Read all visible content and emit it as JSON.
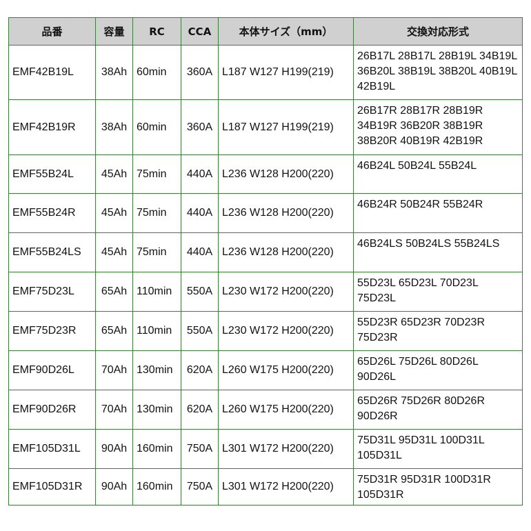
{
  "headers": [
    "品番",
    "容量",
    "RC",
    "CCA",
    "本体サイズ（mm）",
    "交換対応形式"
  ],
  "rows": [
    {
      "model": "EMF42B19L",
      "capacity": "38Ah",
      "rc": "60min",
      "cca": "360A",
      "size": "L187 W127 H199(219)",
      "compat": "26B17L 28B17L 28B19L 34B19L 36B20L 38B19L 38B20L 40B19L 42B19L"
    },
    {
      "model": "EMF42B19R",
      "capacity": "38Ah",
      "rc": "60min",
      "cca": "360A",
      "size": "L187 W127 H199(219)",
      "compat": "26B17R 28B17R 28B19R 34B19R 36B20R 38B19R 38B20R 40B19R 42B19R"
    },
    {
      "model": "EMF55B24L",
      "capacity": "45Ah",
      "rc": "75min",
      "cca": "440A",
      "size": "L236 W128 H200(220)",
      "compat": "46B24L 50B24L 55B24L"
    },
    {
      "model": "EMF55B24R",
      "capacity": "45Ah",
      "rc": "75min",
      "cca": "440A",
      "size": "L236 W128 H200(220)",
      "compat": "46B24R 50B24R 55B24R"
    },
    {
      "model": "EMF55B24LS",
      "capacity": "45Ah",
      "rc": "75min",
      "cca": "440A",
      "size": "L236 W128 H200(220)",
      "compat": "46B24LS 50B24LS 55B24LS"
    },
    {
      "model": "EMF75D23L",
      "capacity": "65Ah",
      "rc": "110min",
      "cca": "550A",
      "size": "L230 W172 H200(220)",
      "compat": "55D23L 65D23L 70D23L 75D23L"
    },
    {
      "model": "EMF75D23R",
      "capacity": "65Ah",
      "rc": "110min",
      "cca": "550A",
      "size": "L230 W172 H200(220)",
      "compat": "55D23R 65D23R 70D23R 75D23R"
    },
    {
      "model": "EMF90D26L",
      "capacity": "70Ah",
      "rc": "130min",
      "cca": "620A",
      "size": "L260 W175 H200(220)",
      "compat": "65D26L 75D26L 80D26L 90D26L"
    },
    {
      "model": "EMF90D26R",
      "capacity": "70Ah",
      "rc": "130min",
      "cca": "620A",
      "size": "L260 W175 H200(220)",
      "compat": "65D26R 75D26R 80D26R 90D26R"
    },
    {
      "model": "EMF105D31L",
      "capacity": "90Ah",
      "rc": "160min",
      "cca": "750A",
      "size": "L301 W172 H200(220)",
      "compat": "75D31L 95D31L 100D31L 105D31L"
    },
    {
      "model": "EMF105D31R",
      "capacity": "90Ah",
      "rc": "160min",
      "cca": "750A",
      "size": "L301 W172 H200(220)",
      "compat": "75D31R 95D31R 100D31R 105D31R"
    }
  ],
  "colors": {
    "header_bg": "#d0d0d0",
    "border": "#3c7d3c"
  }
}
